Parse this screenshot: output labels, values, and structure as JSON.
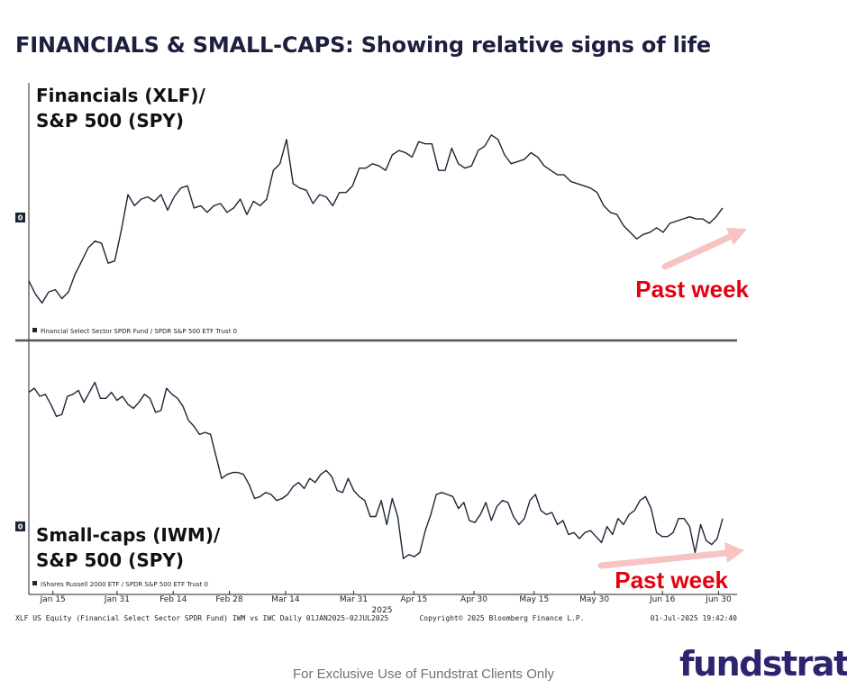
{
  "title": "FINANCIALS & SMALL-CAPS: Showing relative signs of life",
  "disclaimer": "For Exclusive Use of Fundstrat Clients Only",
  "logo": "fundstrat",
  "footer": {
    "left": "XLF US Equity (Financial Select Sector SPDR Fund) IWM vs IWC  Daily 01JAN2025-02JUL2025",
    "center": "Copyright© 2025 Bloomberg Finance L.P.",
    "right": "01-Jul-2025 19:42:40"
  },
  "colors": {
    "line": "#1c2536",
    "annotation": "#e3000f",
    "arrow": "#f7c3c3",
    "title": "#1d1f3f",
    "logo": "#2d2470"
  },
  "chart_data": [
    {
      "type": "line",
      "title_lines": [
        "Financials (XLF)/",
        "S&P 500 (SPY)"
      ],
      "legend": "Financial Select Sector SPDR Fund / SPDR S&P 500 ETF Trust 0",
      "zero_label": "0",
      "annotation": "Past week",
      "ylim": [
        -5.2,
        4.5
      ],
      "x_start": "2025-01-09",
      "x_end": "2025-07-01",
      "series": [
        {
          "values": [
            -3.4,
            -4.0,
            -4.4,
            -3.9,
            -3.8,
            -4.2,
            -3.9,
            -3.1,
            -2.5,
            -1.9,
            -1.6,
            -1.7,
            -2.6,
            -2.5,
            -1.1,
            0.5,
            0.0,
            0.3,
            0.4,
            0.2,
            0.5,
            -0.2,
            0.4,
            0.8,
            0.9,
            -0.1,
            0.0,
            -0.3,
            0.0,
            0.1,
            -0.3,
            -0.1,
            0.3,
            -0.4,
            0.2,
            0.0,
            0.3,
            1.6,
            1.9,
            3.0,
            1.0,
            0.8,
            0.7,
            0.1,
            0.5,
            0.4,
            0.0,
            0.6,
            0.6,
            0.9,
            1.7,
            1.7,
            1.9,
            1.8,
            1.6,
            2.3,
            2.5,
            2.4,
            2.2,
            2.9,
            2.8,
            2.8,
            1.6,
            1.6,
            2.6,
            1.9,
            1.7,
            1.8,
            2.5,
            2.7,
            3.2,
            3.0,
            2.3,
            1.9,
            2.0,
            2.1,
            2.4,
            2.2,
            1.8,
            1.6,
            1.4,
            1.4,
            1.1,
            1.0,
            0.9,
            0.8,
            0.6,
            0.0,
            -0.3,
            -0.4,
            -0.9,
            -1.2,
            -1.5,
            -1.3,
            -1.2,
            -1.0,
            -1.2,
            -0.8,
            -0.7,
            -0.6,
            -0.5,
            -0.6,
            -0.6,
            -0.8,
            -0.5,
            -0.1
          ]
        }
      ]
    },
    {
      "type": "line",
      "title_lines": [
        "Small-caps (IWM)/",
        "S&P 500 (SPY)"
      ],
      "legend": "iShares Russell 2000 ETF / SPDR S&P 500 ETF Trust 0",
      "zero_label": "0",
      "annotation": "Past week",
      "ylim": [
        -2.4,
        8.3
      ],
      "x_start": "2025-01-09",
      "x_end": "2025-07-01",
      "x_ticks": [
        "Jan 15",
        "Jan 31",
        "Feb 14",
        "Feb 28",
        "Mar 14",
        "Mar 31",
        "Apr 15",
        "Apr 30",
        "May 15",
        "May 30",
        "Jun 16",
        "Jun 30"
      ],
      "x_year": "2025",
      "series": [
        {
          "values": [
            6.7,
            6.9,
            6.5,
            6.6,
            6.1,
            5.5,
            5.6,
            6.5,
            6.6,
            6.8,
            6.2,
            6.7,
            7.2,
            6.4,
            6.4,
            6.7,
            6.3,
            6.5,
            6.1,
            5.9,
            6.2,
            6.6,
            6.4,
            5.7,
            5.8,
            6.9,
            6.6,
            6.4,
            6.0,
            5.3,
            5.0,
            4.6,
            4.7,
            4.6,
            3.5,
            2.4,
            2.6,
            2.7,
            2.7,
            2.6,
            2.1,
            1.4,
            1.5,
            1.7,
            1.6,
            1.3,
            1.4,
            1.6,
            2.0,
            2.2,
            1.9,
            2.4,
            2.2,
            2.6,
            2.8,
            2.5,
            1.8,
            1.7,
            2.4,
            1.8,
            1.5,
            1.3,
            0.5,
            0.5,
            1.3,
            0.1,
            1.4,
            0.5,
            -1.6,
            -1.4,
            -1.5,
            -1.3,
            -0.2,
            0.6,
            1.6,
            1.7,
            1.6,
            1.5,
            0.9,
            1.2,
            0.3,
            0.2,
            0.6,
            1.2,
            0.3,
            1.0,
            1.3,
            1.2,
            0.5,
            0.1,
            0.4,
            1.3,
            1.6,
            0.8,
            0.6,
            0.7,
            0.1,
            0.3,
            -0.4,
            -0.3,
            -0.6,
            -0.3,
            -0.2,
            -0.5,
            -0.8,
            0.0,
            -0.4,
            0.4,
            0.1,
            0.6,
            0.8,
            1.3,
            1.5,
            0.9,
            -0.3,
            -0.5,
            -0.5,
            -0.3,
            0.4,
            0.4,
            0.0,
            -1.3,
            0.1,
            -0.7,
            -0.9,
            -0.6,
            0.4
          ]
        }
      ]
    }
  ]
}
